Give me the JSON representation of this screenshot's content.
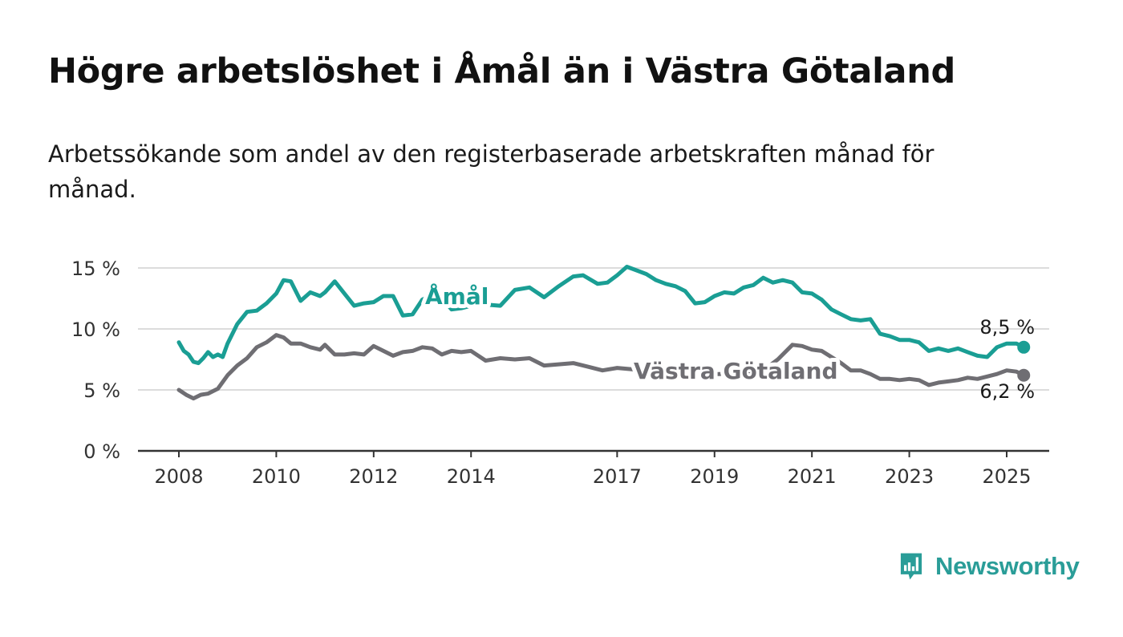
{
  "title": "Högre arbetslöshet i Åmål än i Västra Götaland",
  "subtitle": "Arbetssökande som andel av den registerbaserade arbetskraften månad för månad.",
  "brand": {
    "name": "Newsworthy",
    "color": "#2a9d98",
    "icon": "newsworthy-logo-icon"
  },
  "chart_data": {
    "type": "line",
    "title": "Högre arbetslöshet i Åmål än i Västra Götaland",
    "subtitle": "Arbetssökande som andel av den registerbaserade arbetskraften månad för månad.",
    "ylim": [
      0,
      15
    ],
    "yticks": [
      0,
      5,
      10,
      15
    ],
    "ytick_labels": [
      "0 %",
      "5 %",
      "10 %",
      "15 %"
    ],
    "xlim": [
      2008,
      2025.4
    ],
    "xticks": [
      2008,
      2010,
      2012,
      2014,
      2017,
      2019,
      2021,
      2023,
      2025
    ],
    "xtick_labels": [
      "2008",
      "2010",
      "2012",
      "2014",
      "2017",
      "2019",
      "2021",
      "2023",
      "2025"
    ],
    "grid": true,
    "legend": "direct labels on lines",
    "series": [
      {
        "name": "Åmål",
        "color": "#1a9e94",
        "end_label": "8,5 %",
        "x": [
          2008.0,
          2008.1,
          2008.2,
          2008.3,
          2008.4,
          2008.5,
          2008.6,
          2008.7,
          2008.8,
          2008.9,
          2009.0,
          2009.2,
          2009.4,
          2009.6,
          2009.8,
          2010.0,
          2010.15,
          2010.3,
          2010.5,
          2010.7,
          2010.9,
          2011.0,
          2011.2,
          2011.4,
          2011.6,
          2011.8,
          2012.0,
          2012.2,
          2012.4,
          2012.6,
          2012.8,
          2013.0,
          2013.2,
          2013.4,
          2013.6,
          2013.8,
          2014.0,
          2014.3,
          2014.6,
          2014.9,
          2015.2,
          2015.5,
          2015.8,
          2016.1,
          2016.3,
          2016.6,
          2016.8,
          2017.0,
          2017.2,
          2017.4,
          2017.6,
          2017.8,
          2018.0,
          2018.2,
          2018.4,
          2018.6,
          2018.8,
          2019.0,
          2019.2,
          2019.4,
          2019.6,
          2019.8,
          2020.0,
          2020.2,
          2020.4,
          2020.6,
          2020.8,
          2021.0,
          2021.2,
          2021.4,
          2021.6,
          2021.8,
          2022.0,
          2022.2,
          2022.4,
          2022.6,
          2022.8,
          2023.0,
          2023.2,
          2023.4,
          2023.6,
          2023.8,
          2024.0,
          2024.2,
          2024.4,
          2024.6,
          2024.8,
          2025.0,
          2025.2,
          2025.35
        ],
        "y": [
          8.9,
          8.2,
          7.9,
          7.3,
          7.2,
          7.6,
          8.1,
          7.7,
          7.9,
          7.7,
          8.8,
          10.4,
          11.4,
          11.5,
          12.1,
          12.9,
          14.0,
          13.9,
          12.3,
          13.0,
          12.7,
          13.0,
          13.9,
          12.9,
          11.9,
          12.1,
          12.2,
          12.7,
          12.7,
          11.1,
          11.2,
          12.4,
          12.8,
          12.5,
          11.6,
          11.7,
          11.9,
          12.0,
          11.9,
          13.2,
          13.4,
          12.6,
          13.5,
          14.3,
          14.4,
          13.7,
          13.8,
          14.4,
          15.1,
          14.8,
          14.5,
          14.0,
          13.7,
          13.5,
          13.1,
          12.1,
          12.2,
          12.7,
          13.0,
          12.9,
          13.4,
          13.6,
          14.2,
          13.8,
          14.0,
          13.8,
          13.0,
          12.9,
          12.4,
          11.6,
          11.2,
          10.8,
          10.7,
          10.8,
          9.6,
          9.4,
          9.1,
          9.1,
          8.9,
          8.2,
          8.4,
          8.2,
          8.4,
          8.1,
          7.8,
          7.7,
          8.5,
          8.8,
          8.8,
          8.5
        ]
      },
      {
        "name": "Västra Götaland",
        "color": "#6f6e73",
        "end_label": "6,2 %",
        "x": [
          2008.0,
          2008.15,
          2008.3,
          2008.45,
          2008.6,
          2008.8,
          2009.0,
          2009.2,
          2009.4,
          2009.6,
          2009.8,
          2010.0,
          2010.15,
          2010.3,
          2010.5,
          2010.7,
          2010.9,
          2011.0,
          2011.2,
          2011.4,
          2011.6,
          2011.8,
          2012.0,
          2012.2,
          2012.4,
          2012.6,
          2012.8,
          2013.0,
          2013.2,
          2013.4,
          2013.6,
          2013.8,
          2014.0,
          2014.3,
          2014.6,
          2014.9,
          2015.2,
          2015.5,
          2015.8,
          2016.1,
          2016.4,
          2016.7,
          2017.0,
          2017.3,
          2017.6,
          2017.9,
          2018.2,
          2018.5,
          2018.8,
          2019.1,
          2019.4,
          2019.7,
          2020.0,
          2020.3,
          2020.6,
          2020.8,
          2021.0,
          2021.2,
          2021.4,
          2021.6,
          2021.8,
          2022.0,
          2022.2,
          2022.4,
          2022.6,
          2022.8,
          2023.0,
          2023.2,
          2023.4,
          2023.6,
          2023.8,
          2024.0,
          2024.2,
          2024.4,
          2024.6,
          2024.8,
          2025.0,
          2025.2,
          2025.35
        ],
        "y": [
          5.0,
          4.6,
          4.3,
          4.6,
          4.7,
          5.1,
          6.2,
          7.0,
          7.6,
          8.5,
          8.9,
          9.5,
          9.3,
          8.8,
          8.8,
          8.5,
          8.3,
          8.7,
          7.9,
          7.9,
          8.0,
          7.9,
          8.6,
          8.2,
          7.8,
          8.1,
          8.2,
          8.5,
          8.4,
          7.9,
          8.2,
          8.1,
          8.2,
          7.4,
          7.6,
          7.5,
          7.6,
          7.0,
          7.1,
          7.2,
          6.9,
          6.6,
          6.8,
          6.7,
          6.4,
          6.1,
          6.1,
          6.2,
          6.3,
          6.3,
          6.4,
          6.5,
          6.6,
          7.5,
          8.7,
          8.6,
          8.3,
          8.2,
          7.7,
          7.2,
          6.6,
          6.6,
          6.3,
          5.9,
          5.9,
          5.8,
          5.9,
          5.8,
          5.4,
          5.6,
          5.7,
          5.8,
          6.0,
          5.9,
          6.1,
          6.3,
          6.6,
          6.5,
          6.2
        ]
      }
    ]
  }
}
